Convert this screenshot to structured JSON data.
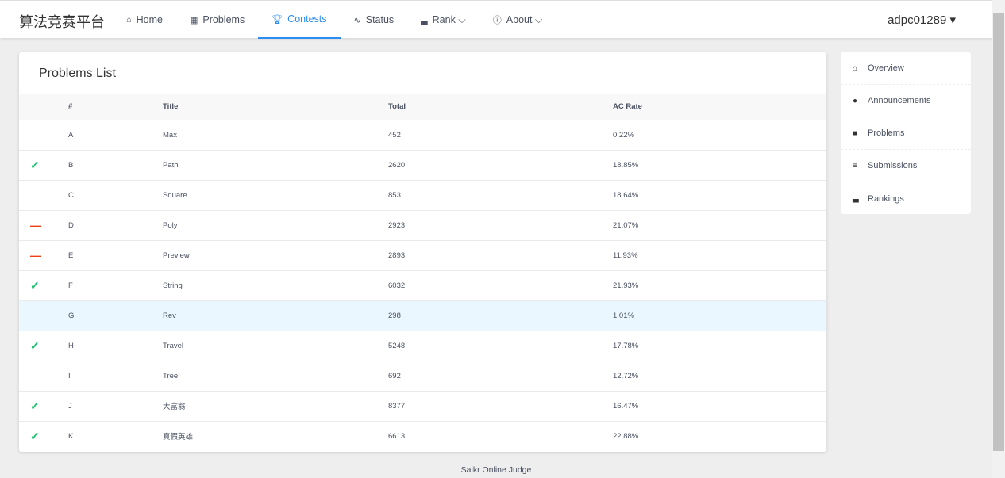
{
  "nav": {
    "logo": "算法竞赛平台",
    "items": [
      {
        "label": "Home",
        "icon": "⌂",
        "name": "home",
        "active": false
      },
      {
        "label": "Problems",
        "icon": "▦",
        "name": "problems",
        "active": false
      },
      {
        "label": "Contests",
        "icon": "🏆︎",
        "name": "contests",
        "active": true
      },
      {
        "label": "Status",
        "icon": "∿",
        "name": "status",
        "active": false
      },
      {
        "label": "Rank ⌵",
        "icon": "▃",
        "name": "rank",
        "active": false
      },
      {
        "label": "About ⌵",
        "icon": "ⓘ",
        "name": "about",
        "active": false
      }
    ],
    "user": "adpc01289 ▾"
  },
  "main": {
    "title": "Problems List",
    "columns": [
      "",
      "#",
      "Title",
      "Total",
      "AC Rate"
    ],
    "rows": [
      [
        "",
        "A",
        "Max",
        "452",
        "0.22%"
      ],
      [
        "ok",
        "B",
        "Path",
        "2620",
        "18.85%"
      ],
      [
        "",
        "C",
        "Square",
        "853",
        "18.64%"
      ],
      [
        "no",
        "D",
        "Poly",
        "2923",
        "21.07%"
      ],
      [
        "no",
        "E",
        "Preview",
        "2893",
        "11.93%"
      ],
      [
        "ok",
        "F",
        "String",
        "6032",
        "21.93%"
      ],
      [
        "",
        "G",
        "Rev",
        "298",
        "1.01%"
      ],
      [
        "ok",
        "H",
        "Travel",
        "5248",
        "17.78%"
      ],
      [
        "",
        "I",
        "Tree",
        "692",
        "12.72%"
      ],
      [
        "ok",
        "J",
        "大富翁",
        "8377",
        "16.47%"
      ],
      [
        "ok",
        "K",
        "真假英雄",
        "6613",
        "22.88%"
      ]
    ],
    "highlight_row": "G"
  },
  "side": {
    "items": [
      {
        "label": "Overview",
        "icon": "⌂"
      },
      {
        "label": "Announcements",
        "icon": "●"
      },
      {
        "label": "Problems",
        "icon": "■"
      },
      {
        "label": "Submissions",
        "icon": "≡"
      },
      {
        "label": "Rankings",
        "icon": "▃"
      }
    ]
  },
  "footer": "Saikr Online Judge",
  "colors": {
    "accent": "#2d8cf0",
    "accepted": "#19be6b",
    "failed": "#ed3f14"
  }
}
